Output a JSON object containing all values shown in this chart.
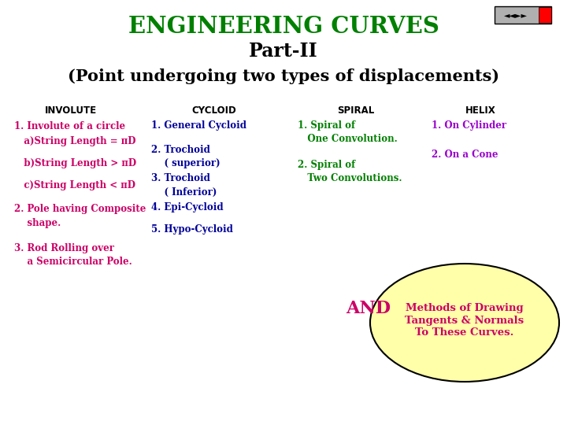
{
  "title1": "ENGINEERING CURVES",
  "title2": "Part-II",
  "title3": "(Point undergoing two types of displacements)",
  "title1_color": "#008000",
  "title2_color": "#000000",
  "title3_color": "#000000",
  "bg_color": "#ffffff",
  "col_headers": [
    "INVOLUTE",
    "CYCLOID",
    "SPIRAL",
    "HELIX"
  ],
  "col_header_color": "#000000",
  "involute_color": "#cc0066",
  "cycloid_color": "#000099",
  "spiral_color": "#008000",
  "helix_color": "#9900cc",
  "and_color": "#cc0066",
  "ellipse_fill": "#ffffaa",
  "ellipse_edge": "#000000",
  "ellipse_text_color": "#cc0066",
  "ellipse_text": "Methods of Drawing\nTangents & Normals\nTo These Curves."
}
